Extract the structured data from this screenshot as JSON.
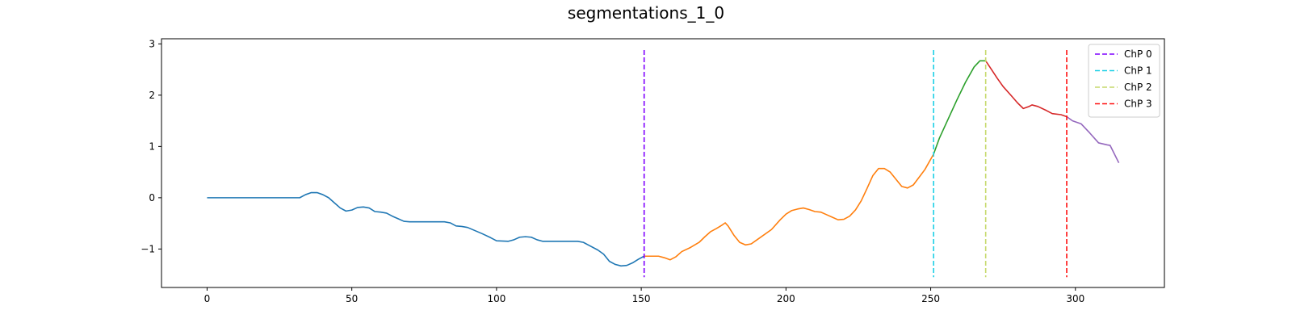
{
  "chart_data": {
    "type": "line",
    "title": "segmentations_1_0",
    "xlabel": "",
    "ylabel": "",
    "xlim": [
      -15.75,
      330.75
    ],
    "ylim": [
      -1.75,
      3.1
    ],
    "x_ticks": [
      0,
      50,
      100,
      150,
      200,
      250,
      300
    ],
    "y_ticks": [
      -1,
      0,
      1,
      2,
      3
    ],
    "y_tick_labels": [
      "−1",
      "0",
      "1",
      "2",
      "3"
    ],
    "grid": false,
    "legend": {
      "placement": "top-right"
    },
    "segments": [
      {
        "color": "#1f77b4",
        "points": [
          [
            0,
            0
          ],
          [
            32,
            0
          ],
          [
            34,
            0.06
          ],
          [
            36,
            0.1
          ],
          [
            38,
            0.1
          ],
          [
            40,
            0.06
          ],
          [
            42,
            0
          ],
          [
            44,
            -0.1
          ],
          [
            46,
            -0.2
          ],
          [
            48,
            -0.26
          ],
          [
            50,
            -0.24
          ],
          [
            52,
            -0.19
          ],
          [
            54,
            -0.18
          ],
          [
            56,
            -0.2
          ],
          [
            58,
            -0.27
          ],
          [
            60,
            -0.28
          ],
          [
            62,
            -0.3
          ],
          [
            64,
            -0.36
          ],
          [
            66,
            -0.41
          ],
          [
            68,
            -0.46
          ],
          [
            70,
            -0.47
          ],
          [
            82,
            -0.47
          ],
          [
            84,
            -0.49
          ],
          [
            86,
            -0.55
          ],
          [
            88,
            -0.56
          ],
          [
            90,
            -0.58
          ],
          [
            95,
            -0.7
          ],
          [
            98,
            -0.78
          ],
          [
            100,
            -0.84
          ],
          [
            104,
            -0.85
          ],
          [
            106,
            -0.82
          ],
          [
            108,
            -0.77
          ],
          [
            110,
            -0.76
          ],
          [
            112,
            -0.77
          ],
          [
            114,
            -0.82
          ],
          [
            116,
            -0.85
          ],
          [
            128,
            -0.85
          ],
          [
            130,
            -0.87
          ],
          [
            132,
            -0.93
          ],
          [
            135,
            -1.02
          ],
          [
            137,
            -1.1
          ],
          [
            139,
            -1.24
          ],
          [
            141,
            -1.3
          ],
          [
            143,
            -1.33
          ],
          [
            145,
            -1.32
          ],
          [
            147,
            -1.27
          ],
          [
            149,
            -1.2
          ],
          [
            151,
            -1.14
          ]
        ]
      },
      {
        "color": "#ff7f0e",
        "points": [
          [
            151,
            -1.14
          ],
          [
            156,
            -1.14
          ],
          [
            158,
            -1.17
          ],
          [
            160,
            -1.21
          ],
          [
            162,
            -1.15
          ],
          [
            164,
            -1.05
          ],
          [
            167,
            -0.97
          ],
          [
            170,
            -0.87
          ],
          [
            172,
            -0.76
          ],
          [
            174,
            -0.66
          ],
          [
            176,
            -0.6
          ],
          [
            178,
            -0.53
          ],
          [
            179,
            -0.49
          ],
          [
            180,
            -0.55
          ],
          [
            182,
            -0.73
          ],
          [
            184,
            -0.87
          ],
          [
            186,
            -0.92
          ],
          [
            188,
            -0.9
          ],
          [
            190,
            -0.82
          ],
          [
            195,
            -0.62
          ],
          [
            198,
            -0.43
          ],
          [
            200,
            -0.32
          ],
          [
            202,
            -0.25
          ],
          [
            204,
            -0.22
          ],
          [
            206,
            -0.2
          ],
          [
            208,
            -0.23
          ],
          [
            210,
            -0.27
          ],
          [
            212,
            -0.28
          ],
          [
            214,
            -0.33
          ],
          [
            216,
            -0.38
          ],
          [
            218,
            -0.43
          ],
          [
            220,
            -0.42
          ],
          [
            222,
            -0.36
          ],
          [
            224,
            -0.24
          ],
          [
            226,
            -0.06
          ],
          [
            228,
            0.18
          ],
          [
            230,
            0.43
          ],
          [
            232,
            0.57
          ],
          [
            234,
            0.57
          ],
          [
            236,
            0.5
          ],
          [
            238,
            0.36
          ],
          [
            240,
            0.22
          ],
          [
            242,
            0.19
          ],
          [
            244,
            0.25
          ],
          [
            246,
            0.4
          ],
          [
            248,
            0.55
          ],
          [
            251,
            0.85
          ]
        ]
      },
      {
        "color": "#2ca02c",
        "points": [
          [
            251,
            0.85
          ],
          [
            253,
            1.16
          ],
          [
            256,
            1.53
          ],
          [
            259,
            1.9
          ],
          [
            262,
            2.25
          ],
          [
            265,
            2.55
          ],
          [
            267,
            2.67
          ],
          [
            269,
            2.67
          ]
        ]
      },
      {
        "color": "#d62728",
        "points": [
          [
            269,
            2.67
          ],
          [
            271,
            2.5
          ],
          [
            273,
            2.33
          ],
          [
            275,
            2.17
          ],
          [
            278,
            1.98
          ],
          [
            280,
            1.85
          ],
          [
            282,
            1.74
          ],
          [
            284,
            1.78
          ],
          [
            285,
            1.81
          ],
          [
            287,
            1.78
          ],
          [
            290,
            1.7
          ],
          [
            292,
            1.64
          ],
          [
            295,
            1.62
          ],
          [
            297,
            1.58
          ]
        ]
      },
      {
        "color": "#9467bd",
        "points": [
          [
            297,
            1.58
          ],
          [
            299,
            1.5
          ],
          [
            302,
            1.44
          ],
          [
            305,
            1.26
          ],
          [
            308,
            1.07
          ],
          [
            311,
            1.03
          ],
          [
            312,
            1.02
          ],
          [
            315,
            0.68
          ]
        ]
      }
    ],
    "changepoints": [
      {
        "name": "ChP 0",
        "x": 151,
        "color": "#7f00ff"
      },
      {
        "name": "ChP 1",
        "x": 251,
        "color": "#1ccfe6"
      },
      {
        "name": "ChP 2",
        "x": 269,
        "color": "#c6d96b"
      },
      {
        "name": "ChP 3",
        "x": 297,
        "color": "#ff1010"
      }
    ],
    "changepoint_y_range": [
      -1.55,
      2.88
    ]
  }
}
